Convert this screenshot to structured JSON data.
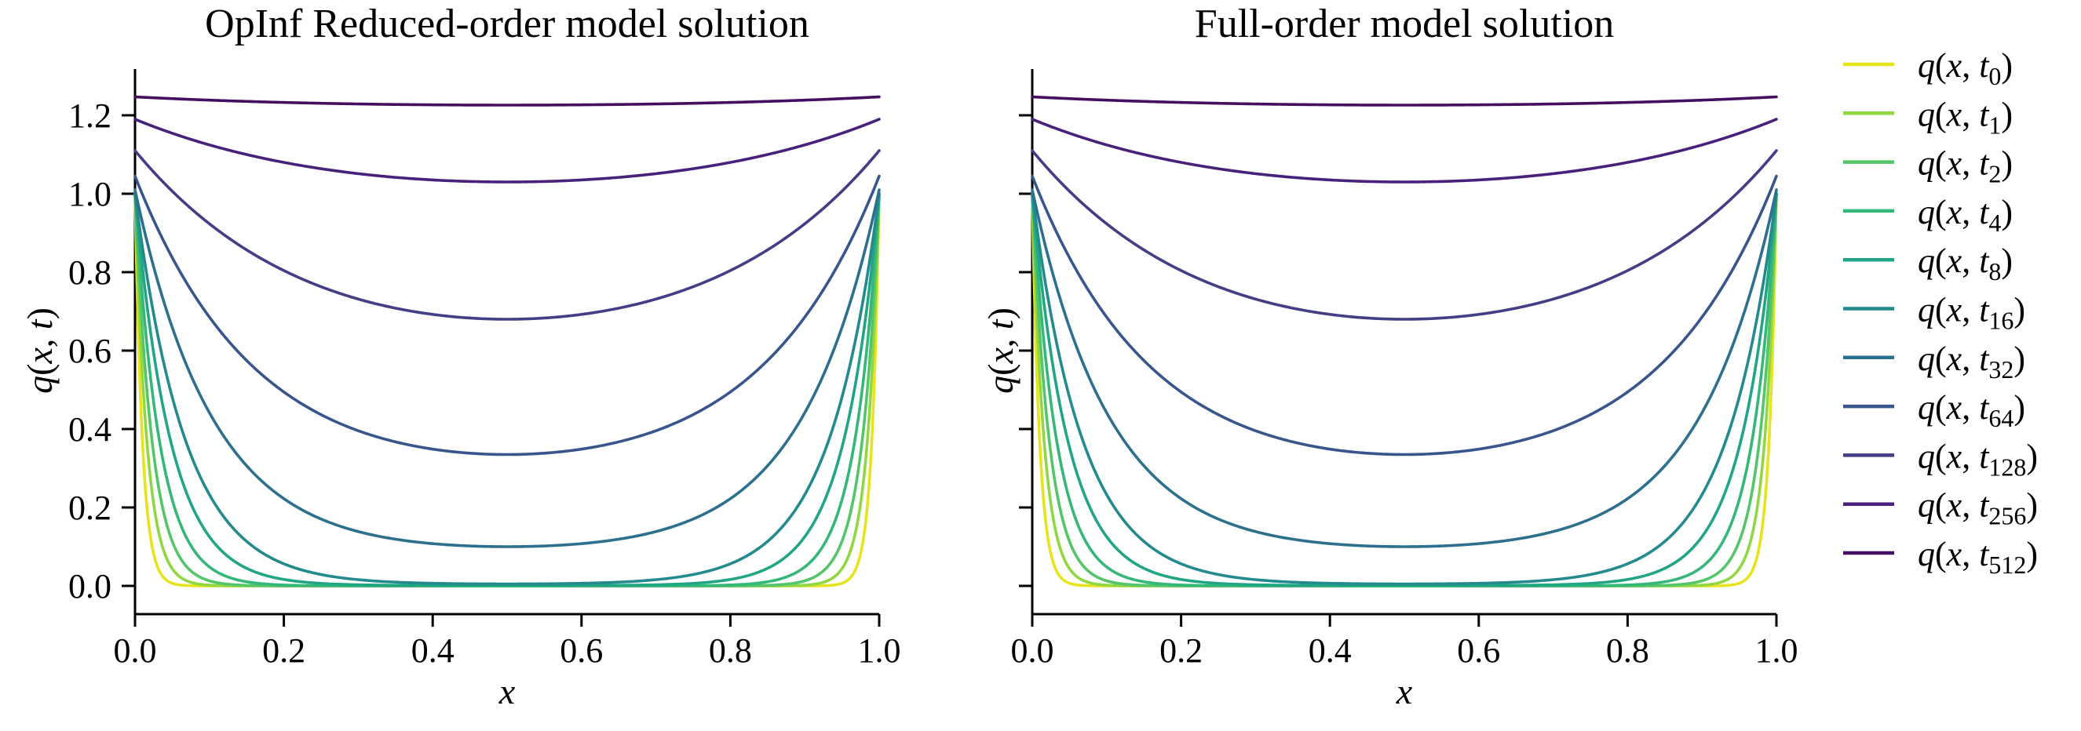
{
  "figure": {
    "background_color": "#ffffff",
    "text_color": "#000000",
    "axis_color": "#000000"
  },
  "chart_data": [
    {
      "type": "line",
      "panel": "left",
      "title": "OpInf Reduced-order model solution",
      "xlabel": "x",
      "ylabel": "q(x, t)",
      "xlim": [
        0.0,
        1.0
      ],
      "ylim": [
        -0.07,
        1.315
      ],
      "xticks": [
        0.0,
        0.2,
        0.4,
        0.6,
        0.8,
        1.0
      ],
      "xtick_labels": [
        "0.0",
        "0.2",
        "0.4",
        "0.6",
        "0.8",
        "1.0"
      ],
      "yticks": [
        0.0,
        0.2,
        0.4,
        0.6,
        0.8,
        1.0,
        1.2
      ],
      "ytick_labels": [
        "0.0",
        "0.2",
        "0.4",
        "0.6",
        "0.8",
        "1.0",
        "1.2"
      ],
      "show_ytick_labels": true,
      "grid": false
    },
    {
      "type": "line",
      "panel": "right",
      "title": "Full-order model solution",
      "xlabel": "x",
      "ylabel": "q(x, t)",
      "xlim": [
        0.0,
        1.0
      ],
      "ylim": [
        -0.07,
        1.315
      ],
      "xticks": [
        0.0,
        0.2,
        0.4,
        0.6,
        0.8,
        1.0
      ],
      "xtick_labels": [
        "0.0",
        "0.2",
        "0.4",
        "0.6",
        "0.8",
        "1.0"
      ],
      "yticks": [
        0.0,
        0.2,
        0.4,
        0.6,
        0.8,
        1.0,
        1.2
      ],
      "ytick_labels": [],
      "show_ytick_labels": false,
      "grid": false
    }
  ],
  "series_profile": "q(x,t_k) = center + (edge - center) * (exp(-x/delta) + exp(-(1-x)/delta) - 2*exp(-0.5/delta)) / (1 + exp(-1/delta) - 2*exp(-0.5/delta)); curves are symmetric about x = 0.5 and identical in both panels",
  "sample_x": [
    0.0,
    0.1,
    0.2,
    0.3,
    0.4,
    0.5
  ],
  "series": [
    {
      "label": "q(x, t_0)",
      "t": 0,
      "color": "#e6e41c",
      "edge_value": 1.0,
      "center_value": 0.0,
      "delta": 0.01,
      "sample_y": [
        1.0,
        0.0,
        0.0,
        0.0,
        0.0,
        0.0
      ]
    },
    {
      "label": "q(x, t_1)",
      "t": 1,
      "color": "#90d743",
      "edge_value": 1.0,
      "center_value": 0.0,
      "delta": 0.016,
      "sample_y": [
        1.0,
        0.002,
        0.0,
        0.0,
        0.0,
        0.0
      ]
    },
    {
      "label": "q(x, t_2)",
      "t": 2,
      "color": "#54c568",
      "edge_value": 1.0,
      "center_value": 0.0,
      "delta": 0.023,
      "sample_y": [
        1.0,
        0.013,
        0.0,
        0.0,
        0.0,
        0.0
      ]
    },
    {
      "label": "q(x, t_4)",
      "t": 4,
      "color": "#35b779",
      "edge_value": 1.0,
      "center_value": 0.0,
      "delta": 0.033,
      "sample_y": [
        1.0,
        0.048,
        0.002,
        0.0,
        0.0,
        0.0
      ]
    },
    {
      "label": "q(x, t_8)",
      "t": 8,
      "color": "#21a585",
      "edge_value": 1.0,
      "center_value": 0.001,
      "delta": 0.048,
      "sample_y": [
        1.0,
        0.125,
        0.016,
        0.002,
        0.001,
        0.001
      ]
    },
    {
      "label": "q(x, t_16)",
      "t": 16,
      "color": "#238a8d",
      "edge_value": 1.0,
      "center_value": 0.005,
      "delta": 0.068,
      "sample_y": [
        1.0,
        0.233,
        0.057,
        0.016,
        0.007,
        0.005
      ]
    },
    {
      "label": "q(x, t_32)",
      "t": 32,
      "color": "#2d708e",
      "edge_value": 1.01,
      "center_value": 0.1,
      "delta": 0.105,
      "sample_y": [
        1.01,
        0.441,
        0.222,
        0.138,
        0.108,
        0.1
      ]
    },
    {
      "label": "q(x, t_64)",
      "t": 64,
      "color": "#39568c",
      "edge_value": 1.045,
      "center_value": 0.335,
      "delta": 0.16,
      "sample_y": [
        1.045,
        0.685,
        0.495,
        0.396,
        0.349,
        0.335
      ]
    },
    {
      "label": "q(x, t_128)",
      "t": 128,
      "color": "#433e85",
      "edge_value": 1.11,
      "center_value": 0.68,
      "delta": 0.24,
      "sample_y": [
        1.11,
        0.923,
        0.804,
        0.731,
        0.692,
        0.68
      ]
    },
    {
      "label": "q(x, t_256)",
      "t": 256,
      "color": "#48217b",
      "edge_value": 1.19,
      "center_value": 1.03,
      "delta": 0.3,
      "sample_y": [
        1.19,
        1.124,
        1.08,
        1.051,
        1.035,
        1.03
      ]
    },
    {
      "label": "q(x, t_512)",
      "t": 512,
      "color": "#460e61",
      "edge_value": 1.247,
      "center_value": 1.226,
      "delta": 0.35,
      "sample_y": [
        1.247,
        1.239,
        1.233,
        1.229,
        1.227,
        1.226
      ]
    }
  ],
  "legend": {
    "position": "right-of-plots",
    "frame": false
  }
}
